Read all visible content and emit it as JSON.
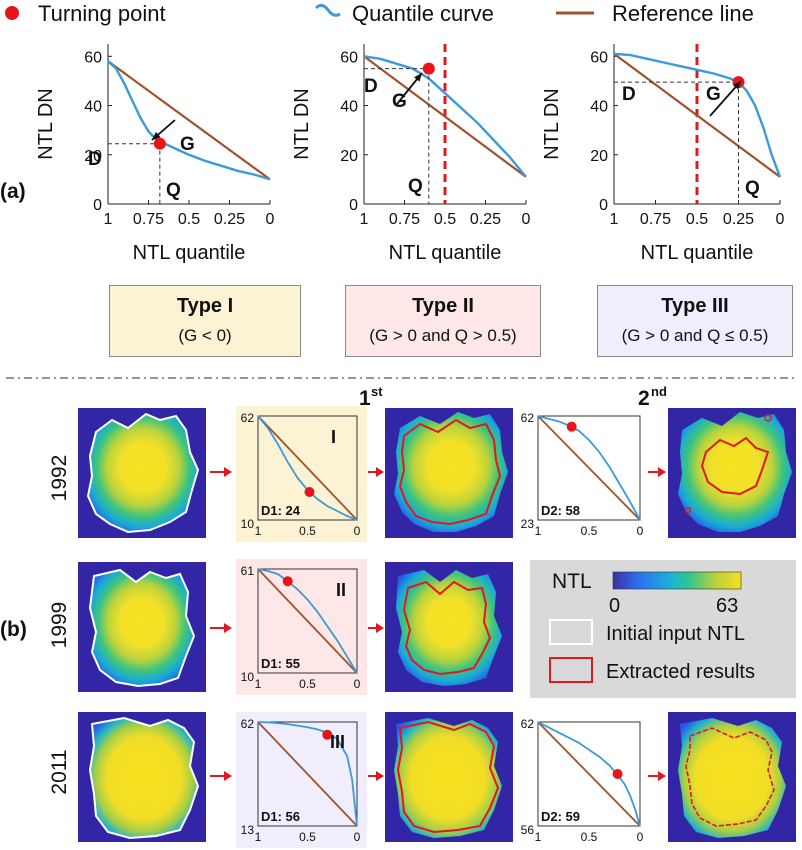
{
  "legend": {
    "turning_point": "Turning point",
    "quantile_curve": "Quantile curve",
    "reference_line": "Reference line",
    "colors": {
      "turning_point": "#e8141b",
      "quantile_curve": "#3a9bd8",
      "reference_line": "#a0522d",
      "threshold": "#e0191e"
    }
  },
  "panel_labels": {
    "a": "(a)",
    "b": "(b)"
  },
  "chart_data": [
    {
      "type": "line",
      "panel": "a-type-I",
      "ylabel": "NTL DN",
      "xlabel": "NTL quantile",
      "x_reversed": true,
      "xlim": [
        1,
        0
      ],
      "ylim": [
        0,
        65
      ],
      "xticks": [
        "1",
        "0.75",
        "0.5",
        "0.25",
        "0"
      ],
      "yticks": [
        "0",
        "20",
        "40",
        "60"
      ],
      "series": [
        {
          "role": "quantile",
          "x": [
            1,
            0.95,
            0.9,
            0.85,
            0.8,
            0.75,
            0.7,
            0.65,
            0.6,
            0.55,
            0.5,
            0.4,
            0.3,
            0.2,
            0.1,
            0.05,
            0
          ],
          "y": [
            58,
            55,
            49,
            42,
            35,
            29.5,
            26,
            24.5,
            23,
            21.5,
            20,
            17.5,
            15.5,
            13.5,
            12,
            11,
            10
          ]
        },
        {
          "role": "reference",
          "x": [
            1,
            0
          ],
          "y": [
            58,
            10
          ]
        }
      ],
      "turning_point": {
        "x": 0.68,
        "y": 24.5
      },
      "annotations": {
        "D": "D",
        "G": "G",
        "Q": "Q"
      }
    },
    {
      "type": "line",
      "panel": "a-type-II",
      "ylabel": "NTL DN",
      "xlabel": "NTL quantile",
      "x_reversed": true,
      "xlim": [
        1,
        0
      ],
      "ylim": [
        0,
        65
      ],
      "xticks": [
        "1",
        "0.75",
        "0.5",
        "0.25",
        "0"
      ],
      "yticks": [
        "0",
        "20",
        "40",
        "60"
      ],
      "series": [
        {
          "role": "quantile",
          "x": [
            1,
            0.9,
            0.8,
            0.7,
            0.6,
            0.5,
            0.4,
            0.3,
            0.2,
            0.1,
            0.05,
            0
          ],
          "y": [
            60,
            59,
            57,
            55,
            51,
            45,
            39,
            33,
            26,
            19,
            15,
            11
          ]
        },
        {
          "role": "reference",
          "x": [
            1,
            0
          ],
          "y": [
            60,
            11
          ]
        }
      ],
      "threshold_x": 0.5,
      "turning_point": {
        "x": 0.6,
        "y": 55
      },
      "annotations": {
        "D": "D",
        "G": "G",
        "Q": "Q"
      }
    },
    {
      "type": "line",
      "panel": "a-type-III",
      "ylabel": "NTL DN",
      "xlabel": "NTL quantile",
      "x_reversed": true,
      "xlim": [
        1,
        0
      ],
      "ylim": [
        0,
        65
      ],
      "xticks": [
        "1",
        "0.75",
        "0.5",
        "0.25",
        "0"
      ],
      "yticks": [
        "0",
        "20",
        "40",
        "60"
      ],
      "series": [
        {
          "role": "quantile",
          "x": [
            1,
            0.9,
            0.8,
            0.7,
            0.6,
            0.5,
            0.4,
            0.3,
            0.25,
            0.2,
            0.15,
            0.1,
            0.05,
            0
          ],
          "y": [
            61,
            60.5,
            59,
            57.5,
            56,
            54.5,
            53,
            51,
            49.5,
            46,
            40,
            31,
            20,
            11
          ]
        },
        {
          "role": "reference",
          "x": [
            1,
            0
          ],
          "y": [
            61,
            11
          ]
        }
      ],
      "threshold_x": 0.5,
      "turning_point": {
        "x": 0.25,
        "y": 49.5
      },
      "annotations": {
        "D": "D",
        "G": "G",
        "Q": "Q"
      }
    },
    {
      "type": "line",
      "panel": "b-1992-1st",
      "x_reversed": true,
      "xlim": [
        1,
        0
      ],
      "ylim": [
        10,
        62
      ],
      "xticks": [
        "1",
        "0.5",
        "0"
      ],
      "yticks": [
        "10",
        "62"
      ],
      "series": [
        {
          "role": "quantile",
          "x": [
            1,
            0.9,
            0.8,
            0.7,
            0.6,
            0.5,
            0.4,
            0.3,
            0.2,
            0.1,
            0
          ],
          "y": [
            62,
            56,
            48,
            39,
            31,
            25,
            20.5,
            17,
            14.5,
            12,
            10
          ]
        },
        {
          "role": "reference",
          "x": [
            1,
            0
          ],
          "y": [
            62,
            10
          ]
        }
      ],
      "turning_point": {
        "x": 0.48,
        "y": 24
      },
      "type_label": "I",
      "d_label": "D1: 24"
    },
    {
      "type": "line",
      "panel": "b-1992-2nd",
      "x_reversed": true,
      "xlim": [
        1,
        0
      ],
      "ylim": [
        23,
        62
      ],
      "xticks": [
        "1",
        "0.5",
        "0"
      ],
      "yticks": [
        "23",
        "62"
      ],
      "series": [
        {
          "role": "quantile",
          "x": [
            1,
            0.9,
            0.8,
            0.7,
            0.6,
            0.5,
            0.4,
            0.3,
            0.2,
            0.1,
            0
          ],
          "y": [
            62,
            61,
            60,
            58.5,
            56.5,
            53,
            48.5,
            43,
            36.5,
            30,
            23
          ]
        },
        {
          "role": "reference",
          "x": [
            1,
            0
          ],
          "y": [
            62,
            23
          ]
        }
      ],
      "turning_point": {
        "x": 0.67,
        "y": 58
      },
      "d_label": "D2: 58"
    },
    {
      "type": "line",
      "panel": "b-1999-1st",
      "x_reversed": true,
      "xlim": [
        1,
        0
      ],
      "ylim": [
        10,
        61
      ],
      "xticks": [
        "1",
        "0.5",
        "0"
      ],
      "yticks": [
        "10",
        "61"
      ],
      "series": [
        {
          "role": "quantile",
          "x": [
            1,
            0.9,
            0.8,
            0.7,
            0.6,
            0.5,
            0.4,
            0.3,
            0.2,
            0.1,
            0
          ],
          "y": [
            61,
            60,
            58.5,
            55,
            51,
            46,
            40,
            33,
            26,
            18,
            10
          ]
        },
        {
          "role": "reference",
          "x": [
            1,
            0
          ],
          "y": [
            61,
            10
          ]
        }
      ],
      "turning_point": {
        "x": 0.7,
        "y": 55
      },
      "type_label": "II",
      "d_label": "D1: 55"
    },
    {
      "type": "line",
      "panel": "b-2011-1st",
      "x_reversed": true,
      "xlim": [
        1,
        0
      ],
      "ylim": [
        13,
        62
      ],
      "xticks": [
        "1",
        "0.5",
        "0"
      ],
      "yticks": [
        "13",
        "62"
      ],
      "series": [
        {
          "role": "quantile",
          "x": [
            1,
            0.9,
            0.8,
            0.7,
            0.6,
            0.5,
            0.4,
            0.3,
            0.2,
            0.1,
            0.05,
            0
          ],
          "y": [
            62,
            61.8,
            61.5,
            61,
            60.3,
            59.5,
            58.5,
            57,
            54,
            46,
            35,
            13
          ]
        },
        {
          "role": "reference",
          "x": [
            1,
            0
          ],
          "y": [
            62,
            13
          ]
        }
      ],
      "turning_point": {
        "x": 0.3,
        "y": 56
      },
      "type_label": "III",
      "d_label": "D1: 56"
    },
    {
      "type": "line",
      "panel": "b-2011-2nd",
      "x_reversed": true,
      "xlim": [
        1,
        0
      ],
      "ylim": [
        56,
        62
      ],
      "xticks": [
        "1",
        "0.5",
        "0"
      ],
      "yticks": [
        "56",
        "62"
      ],
      "series": [
        {
          "role": "quantile",
          "x": [
            1,
            0.9,
            0.8,
            0.7,
            0.6,
            0.5,
            0.4,
            0.3,
            0.2,
            0.15,
            0.1,
            0.05,
            0
          ],
          "y": [
            62,
            61.7,
            61.4,
            61.1,
            60.8,
            60.4,
            60,
            59.5,
            58.8,
            58.4,
            57.8,
            57,
            56
          ]
        },
        {
          "role": "reference",
          "x": [
            1,
            0
          ],
          "y": [
            62,
            56
          ]
        }
      ],
      "turning_point": {
        "x": 0.22,
        "y": 59
      },
      "d_label": "D2: 59"
    }
  ],
  "type_boxes": [
    {
      "title": "Type I",
      "condition": "(G < 0)",
      "color": "#fcf3d4"
    },
    {
      "title": "Type II",
      "condition": "(G > 0 and Q > 0.5)",
      "color": "#fde7e7"
    },
    {
      "title": "Type III",
      "condition": "(G > 0 and Q ≤ 0.5)",
      "color": "#f0eefc"
    }
  ],
  "stages": {
    "first": "1",
    "first_sup": "st",
    "second": "2",
    "second_sup": "nd"
  },
  "years": [
    "1992",
    "1999",
    "2011"
  ],
  "ntl_legend": {
    "title": "NTL",
    "min": "0",
    "max": "63",
    "initial": "Initial input NTL",
    "extracted": "Extracted results",
    "colormap": [
      "#3d2fa5",
      "#2e6ff0",
      "#1ab3d4",
      "#35c58a",
      "#b9d13c",
      "#f7e01e"
    ]
  }
}
